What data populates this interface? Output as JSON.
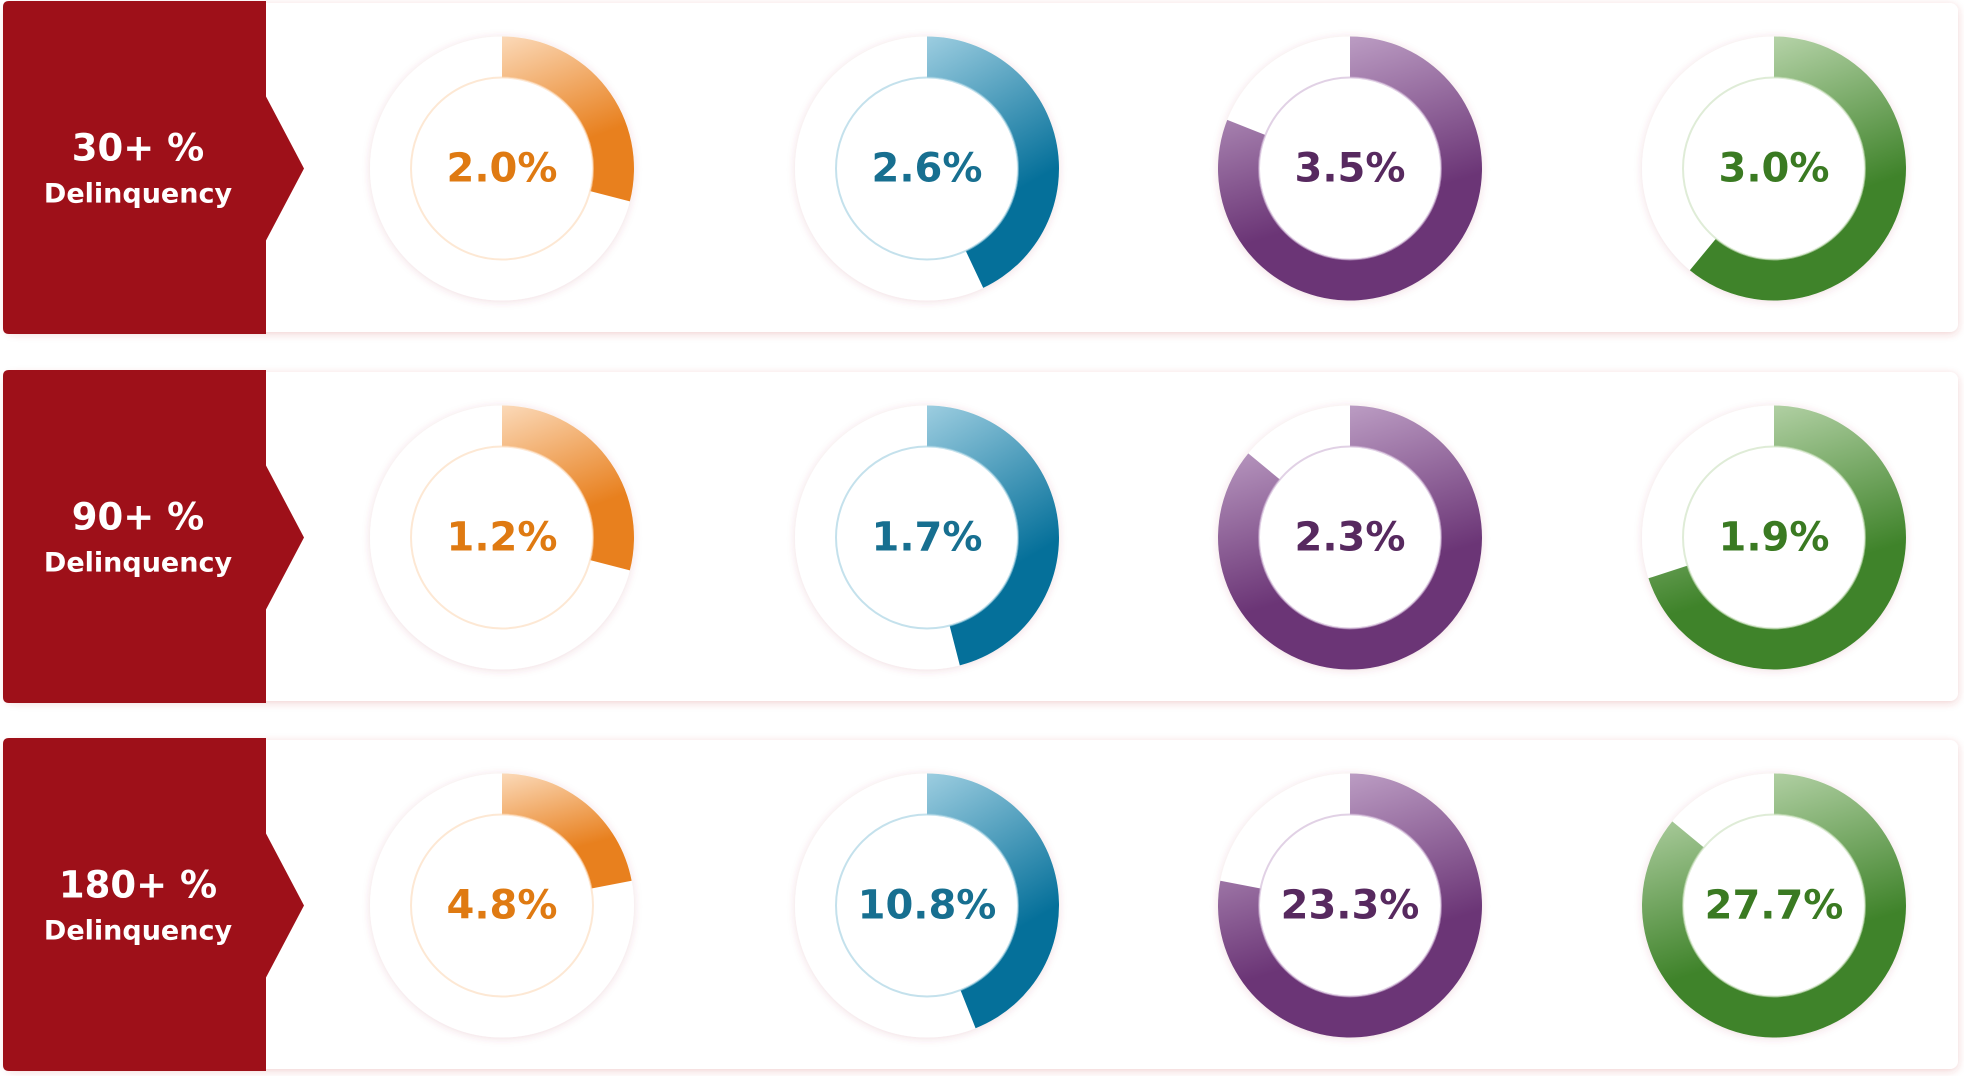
{
  "colors": [
    {
      "arc": "#e8801e",
      "light": "#fbd9b8",
      "text": "#df7a12"
    },
    {
      "arc": "#05709a",
      "light": "#9ccde0",
      "text": "#176f90"
    },
    {
      "arc": "#6b3576",
      "light": "#cdb3d4",
      "text": "#57295f"
    },
    {
      "arc": "#3f832a",
      "light": "#c9e0bd",
      "text": "#3a7a22"
    }
  ],
  "rows": [
    {
      "label": "30+ %",
      "sublabel": "Delinquency",
      "cells": [
        {
          "label": "2.0%",
          "fill": 29
        },
        {
          "label": "2.6%",
          "fill": 43
        },
        {
          "label": "3.5%",
          "fill": 81
        },
        {
          "label": "3.0%",
          "fill": 61
        }
      ]
    },
    {
      "label": "90+ %",
      "sublabel": "Delinquency",
      "cells": [
        {
          "label": "1.2%",
          "fill": 29
        },
        {
          "label": "1.7%",
          "fill": 46
        },
        {
          "label": "2.3%",
          "fill": 86
        },
        {
          "label": "1.9%",
          "fill": 70
        }
      ]
    },
    {
      "label": "180+ %",
      "sublabel": "Delinquency",
      "cells": [
        {
          "label": "4.8%",
          "fill": 22
        },
        {
          "label": "10.8%",
          "fill": 44
        },
        {
          "label": "23.3%",
          "fill": 78
        },
        {
          "label": "27.7%",
          "fill": 86
        }
      ]
    }
  ]
}
